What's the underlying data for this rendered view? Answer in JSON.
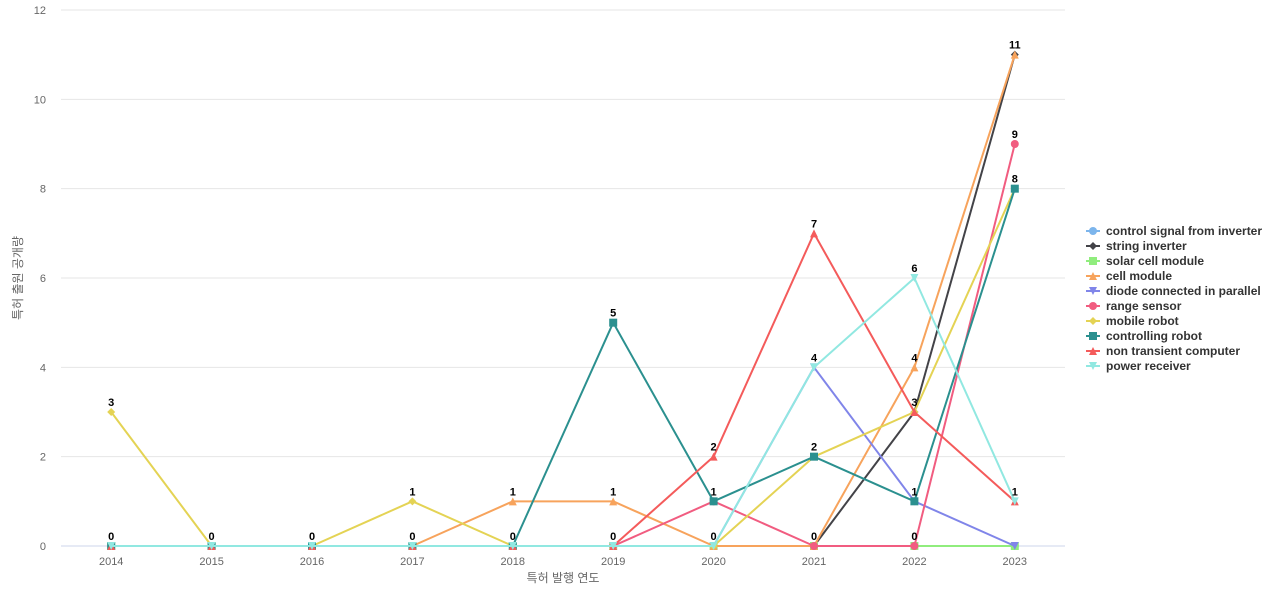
{
  "chart_data": {
    "type": "line",
    "xlabel": "특허 발행 연도",
    "ylabel": "특허 출원 공개량",
    "ylim": [
      0,
      12
    ],
    "yticks": [
      0,
      2,
      4,
      6,
      8,
      10,
      12
    ],
    "categories": [
      "2014",
      "2015",
      "2016",
      "2017",
      "2018",
      "2019",
      "2020",
      "2021",
      "2022",
      "2023"
    ],
    "grid": "horizontal",
    "legend_position": "right",
    "series": [
      {
        "name": "control signal from inverter",
        "color": "#7cb5ec",
        "marker": "circle",
        "values": [
          0,
          0,
          0,
          0,
          0,
          0,
          0,
          0,
          0,
          0
        ]
      },
      {
        "name": "string inverter",
        "color": "#434348",
        "marker": "diamond",
        "values": [
          0,
          0,
          0,
          0,
          0,
          0,
          0,
          0,
          3,
          11
        ]
      },
      {
        "name": "solar cell module",
        "color": "#90ed7d",
        "marker": "square",
        "values": [
          0,
          0,
          0,
          0,
          0,
          0,
          0,
          0,
          0,
          0
        ]
      },
      {
        "name": "cell module",
        "color": "#f7a35c",
        "marker": "triangle",
        "values": [
          0,
          0,
          0,
          0,
          1,
          1,
          0,
          0,
          4,
          11
        ]
      },
      {
        "name": "diode connected in parallel",
        "color": "#8085e9",
        "marker": "triangle-down",
        "values": [
          0,
          0,
          0,
          0,
          0,
          0,
          0,
          4,
          1,
          0
        ]
      },
      {
        "name": "range sensor",
        "color": "#f15c80",
        "marker": "circle",
        "values": [
          0,
          0,
          0,
          0,
          0,
          0,
          1,
          0,
          0,
          9
        ]
      },
      {
        "name": "mobile robot",
        "color": "#e4d354",
        "marker": "diamond",
        "values": [
          3,
          0,
          0,
          1,
          0,
          0,
          0,
          2,
          3,
          8
        ]
      },
      {
        "name": "controlling robot",
        "color": "#2b908f",
        "marker": "square",
        "values": [
          0,
          0,
          0,
          0,
          0,
          5,
          1,
          2,
          1,
          8
        ]
      },
      {
        "name": "non transient computer",
        "color": "#f45b5b",
        "marker": "triangle",
        "values": [
          0,
          0,
          0,
          0,
          0,
          0,
          2,
          7,
          3,
          1
        ]
      },
      {
        "name": "power receiver",
        "color": "#91e8e1",
        "marker": "triangle-down",
        "values": [
          0,
          0,
          0,
          0,
          0,
          0,
          0,
          4,
          6,
          1
        ]
      }
    ],
    "data_labels": [
      {
        "category": "2014",
        "text": "3",
        "value": 3
      },
      {
        "category": "2014",
        "text": "0",
        "value": 0
      },
      {
        "category": "2015",
        "text": "0",
        "value": 0
      },
      {
        "category": "2016",
        "text": "0",
        "value": 0
      },
      {
        "category": "2017",
        "text": "1",
        "value": 1
      },
      {
        "category": "2017",
        "text": "0",
        "value": 0
      },
      {
        "category": "2018",
        "text": "1",
        "value": 1
      },
      {
        "category": "2018",
        "text": "0",
        "value": 0
      },
      {
        "category": "2019",
        "text": "5",
        "value": 5
      },
      {
        "category": "2019",
        "text": "1",
        "value": 1
      },
      {
        "category": "2019",
        "text": "0",
        "value": 0
      },
      {
        "category": "2020",
        "text": "2",
        "value": 2
      },
      {
        "category": "2020",
        "text": "1",
        "value": 1
      },
      {
        "category": "2020",
        "text": "0",
        "value": 0
      },
      {
        "category": "2021",
        "text": "7",
        "value": 7
      },
      {
        "category": "2021",
        "text": "4",
        "value": 4
      },
      {
        "category": "2021",
        "text": "2",
        "value": 2
      },
      {
        "category": "2021",
        "text": "0",
        "value": 0
      },
      {
        "category": "2022",
        "text": "6",
        "value": 6
      },
      {
        "category": "2022",
        "text": "4",
        "value": 4
      },
      {
        "category": "2022",
        "text": "3",
        "value": 3
      },
      {
        "category": "2022",
        "text": "1",
        "value": 1
      },
      {
        "category": "2022",
        "text": "0",
        "value": 0
      },
      {
        "category": "2023",
        "text": "11",
        "value": 11
      },
      {
        "category": "2023",
        "text": "9",
        "value": 9
      },
      {
        "category": "2023",
        "text": "8",
        "value": 8
      },
      {
        "category": "2023",
        "text": "1",
        "value": 1
      }
    ]
  }
}
